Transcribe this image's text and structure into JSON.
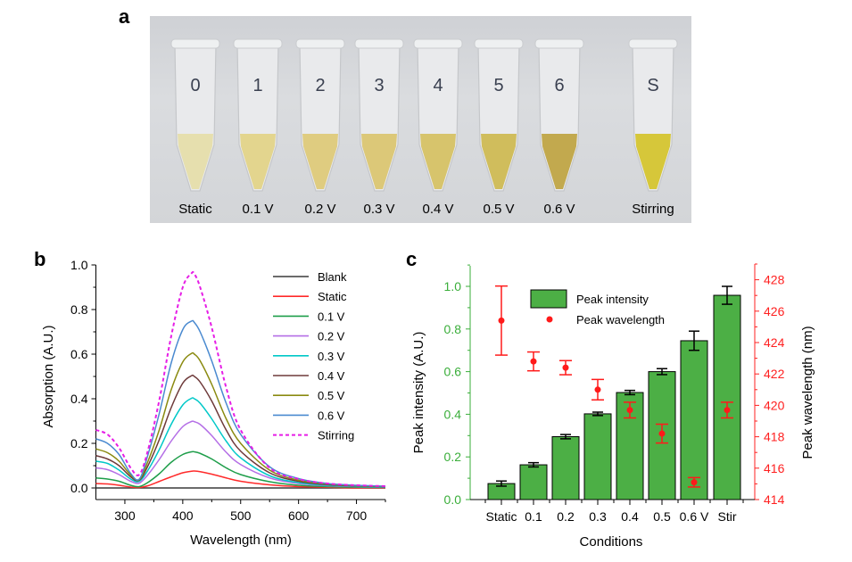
{
  "panels": {
    "a": "a",
    "b": "b",
    "c": "c"
  },
  "photo": {
    "description": "Photograph of eight microcentrifuge tubes with yellow solutions of increasing intensity",
    "tubes": [
      {
        "label": "Static",
        "marker": "0",
        "liquid_color": "#e6dfae"
      },
      {
        "label": "0.1 V",
        "marker": "1",
        "liquid_color": "#e3d58e"
      },
      {
        "label": "0.2 V",
        "marker": "2",
        "liquid_color": "#dfcc80"
      },
      {
        "label": "0.3 V",
        "marker": "3",
        "liquid_color": "#dcc878"
      },
      {
        "label": "0.4 V",
        "marker": "4",
        "liquid_color": "#d7c46c"
      },
      {
        "label": "0.5 V",
        "marker": "5",
        "liquid_color": "#d0bd5c"
      },
      {
        "label": "0.6 V",
        "marker": "6",
        "liquid_color": "#c2a94e"
      },
      {
        "label": "Stirring",
        "marker": "S",
        "liquid_color": "#d6c73a"
      }
    ]
  },
  "chart_data": [
    {
      "type": "line",
      "title": "",
      "xlabel": "Wavelength (nm)",
      "ylabel": "Absorption (A.U.)",
      "xlim": [
        250,
        750
      ],
      "ylim": [
        -0.05,
        1.0
      ],
      "xticks": [
        "300",
        "400",
        "500",
        "600",
        "700"
      ],
      "yticks": [
        "0.0",
        "0.2",
        "0.4",
        "0.6",
        "0.8",
        "1.0"
      ],
      "legend_position": "top-right",
      "x": [
        250,
        270,
        290,
        310,
        325,
        340,
        360,
        380,
        400,
        415,
        420,
        430,
        450,
        475,
        500,
        550,
        600,
        650,
        700,
        750
      ],
      "series": [
        {
          "name": "Blank",
          "color": "#3a3a3a",
          "dash": false,
          "values": [
            0.0,
            0.0,
            0.0,
            0.0,
            0.0,
            0.0,
            0.0,
            0.0,
            0.0,
            0.0,
            0.0,
            0.0,
            0.0,
            0.0,
            0.0,
            0.0,
            0.0,
            0.0,
            0.0,
            0.0
          ]
        },
        {
          "name": "Static",
          "color": "#ff2a2a",
          "dash": false,
          "values": [
            0.02,
            0.018,
            0.012,
            0.004,
            0.002,
            0.01,
            0.03,
            0.05,
            0.068,
            0.075,
            0.076,
            0.073,
            0.062,
            0.045,
            0.03,
            0.014,
            0.006,
            0.003,
            0.0,
            0.0
          ]
        },
        {
          "name": "0.1 V",
          "color": "#1e9e4a",
          "dash": false,
          "values": [
            0.045,
            0.04,
            0.03,
            0.012,
            0.006,
            0.025,
            0.065,
            0.115,
            0.15,
            0.162,
            0.162,
            0.155,
            0.13,
            0.09,
            0.06,
            0.028,
            0.012,
            0.006,
            0.003,
            0.002
          ]
        },
        {
          "name": "0.2 V",
          "color": "#b46ee6",
          "dash": false,
          "values": [
            0.09,
            0.082,
            0.06,
            0.03,
            0.022,
            0.06,
            0.13,
            0.21,
            0.275,
            0.298,
            0.297,
            0.285,
            0.235,
            0.16,
            0.105,
            0.045,
            0.02,
            0.01,
            0.006,
            0.004
          ]
        },
        {
          "name": "0.3 V",
          "color": "#00c8c8",
          "dash": false,
          "values": [
            0.12,
            0.11,
            0.08,
            0.04,
            0.03,
            0.08,
            0.175,
            0.285,
            0.372,
            0.402,
            0.4,
            0.38,
            0.31,
            0.21,
            0.135,
            0.055,
            0.024,
            0.012,
            0.007,
            0.005
          ]
        },
        {
          "name": "0.4 V",
          "color": "#6e3a3a",
          "dash": false,
          "values": [
            0.145,
            0.13,
            0.1,
            0.05,
            0.035,
            0.1,
            0.22,
            0.36,
            0.47,
            0.503,
            0.5,
            0.475,
            0.39,
            0.26,
            0.165,
            0.068,
            0.03,
            0.015,
            0.009,
            0.006
          ]
        },
        {
          "name": "0.5 V",
          "color": "#8a8a10",
          "dash": false,
          "values": [
            0.175,
            0.158,
            0.12,
            0.058,
            0.038,
            0.12,
            0.265,
            0.44,
            0.565,
            0.603,
            0.6,
            0.57,
            0.465,
            0.31,
            0.2,
            0.08,
            0.035,
            0.018,
            0.01,
            0.007
          ]
        },
        {
          "name": "0.6 V",
          "color": "#4a8ad0",
          "dash": false,
          "values": [
            0.22,
            0.2,
            0.15,
            0.065,
            0.04,
            0.15,
            0.34,
            0.56,
            0.71,
            0.748,
            0.742,
            0.7,
            0.57,
            0.38,
            0.24,
            0.095,
            0.042,
            0.02,
            0.012,
            0.008
          ]
        },
        {
          "name": "Stirring",
          "color": "#e61ee6",
          "dash": true,
          "values": [
            0.26,
            0.24,
            0.18,
            0.09,
            0.06,
            0.17,
            0.4,
            0.68,
            0.9,
            0.962,
            0.96,
            0.9,
            0.72,
            0.45,
            0.26,
            0.09,
            0.04,
            0.02,
            0.012,
            0.008
          ]
        }
      ]
    },
    {
      "type": "bar",
      "title": "",
      "xlabel": "Conditions",
      "ylabel": "Peak intensity (A.U.)",
      "ylabel_right": "Peak wavelength (nm)",
      "categories": [
        "Static",
        "0.1",
        "0.2",
        "0.3",
        "0.4",
        "0.5",
        "0.6 V",
        "Stir"
      ],
      "ylim": [
        0.0,
        1.1
      ],
      "ylim_right": [
        414,
        429
      ],
      "yticks": [
        "0.0",
        "0.2",
        "0.4",
        "0.6",
        "0.8",
        "1.0"
      ],
      "yticks_right": [
        "414",
        "416",
        "418",
        "420",
        "422",
        "424",
        "426",
        "428"
      ],
      "legend_position": "top-center",
      "colors": {
        "bar": "#4caf45",
        "left_axis": "#3aae3a",
        "right_axis": "#ff2020",
        "point": "#ff1a1a"
      },
      "series": [
        {
          "name": "Peak intensity",
          "kind": "bar",
          "axis": "left",
          "values": [
            0.075,
            0.163,
            0.295,
            0.402,
            0.502,
            0.6,
            0.745,
            0.958
          ],
          "errors": [
            0.012,
            0.01,
            0.01,
            0.008,
            0.01,
            0.014,
            0.045,
            0.042
          ]
        },
        {
          "name": "Peak wavelength",
          "kind": "point",
          "axis": "right",
          "values": [
            425.4,
            422.8,
            422.4,
            421.0,
            419.7,
            418.2,
            415.1,
            419.7
          ],
          "errors": [
            2.2,
            0.6,
            0.45,
            0.65,
            0.5,
            0.6,
            0.3,
            0.5
          ]
        }
      ]
    }
  ]
}
